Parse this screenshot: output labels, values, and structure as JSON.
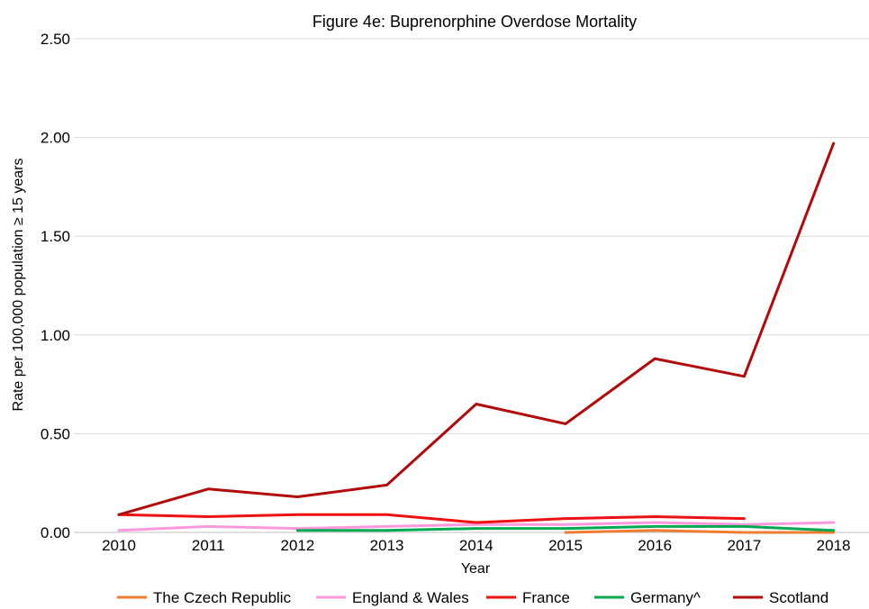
{
  "chart_data": {
    "type": "line",
    "title": "Figure 4e: Buprenorphine Overdose Mortality",
    "xlabel": "Year",
    "ylabel": "Rate per 100,000 population ≥ 15 years",
    "categories": [
      "2010",
      "2011",
      "2012",
      "2013",
      "2014",
      "2015",
      "2016",
      "2017",
      "2018"
    ],
    "ylim": [
      0,
      2.5
    ],
    "yticks": [
      "0.00",
      "0.50",
      "1.00",
      "1.50",
      "2.00",
      "2.50"
    ],
    "grid": true,
    "legend_position": "bottom",
    "series": [
      {
        "name": "The Czech Republic",
        "color": "#ED7D31",
        "values": [
          null,
          null,
          null,
          null,
          null,
          0.0,
          0.01,
          0.0,
          0.0
        ]
      },
      {
        "name": "England & Wales",
        "color": "#FF99DD",
        "values": [
          0.01,
          0.03,
          0.02,
          0.03,
          0.04,
          0.04,
          0.05,
          0.04,
          0.05
        ]
      },
      {
        "name": "France",
        "color": "#EE1111",
        "values": [
          0.09,
          0.08,
          0.09,
          0.09,
          0.05,
          0.07,
          0.08,
          0.07,
          null
        ]
      },
      {
        "name": "Germany^",
        "color": "#00AA50",
        "values": [
          null,
          null,
          0.01,
          0.01,
          0.02,
          0.02,
          0.03,
          0.03,
          0.01
        ]
      },
      {
        "name": "Scotland",
        "color": "#B20A0A",
        "values": [
          0.09,
          0.22,
          0.18,
          0.24,
          0.65,
          0.55,
          0.88,
          0.79,
          1.97
        ]
      }
    ]
  }
}
